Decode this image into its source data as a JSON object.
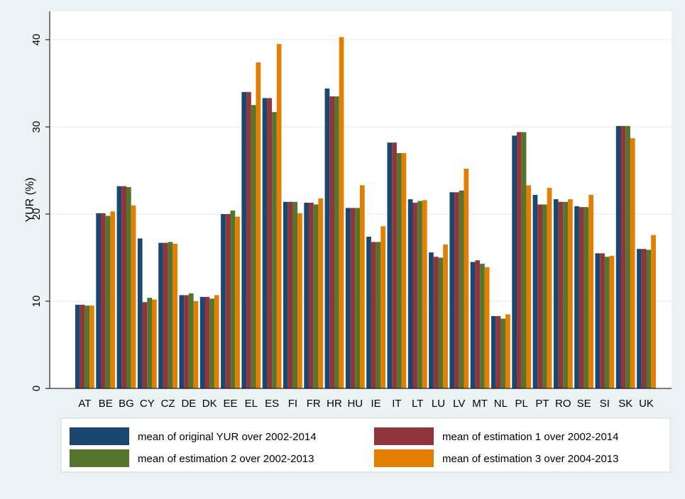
{
  "chart_data": {
    "type": "bar",
    "ylabel": "YUR (%)",
    "xlabel": "",
    "ylim": [
      0,
      42
    ],
    "yticks": [
      0,
      10,
      20,
      30,
      40
    ],
    "grid": true,
    "legend_position": "bottom",
    "categories": [
      "AT",
      "BE",
      "BG",
      "CY",
      "CZ",
      "DE",
      "DK",
      "EE",
      "EL",
      "ES",
      "FI",
      "FR",
      "HR",
      "HU",
      "IE",
      "IT",
      "LT",
      "LU",
      "LV",
      "MT",
      "NL",
      "PL",
      "PT",
      "RO",
      "SE",
      "SI",
      "SK",
      "UK"
    ],
    "series": [
      {
        "name": "mean of original YUR over 2002-2014",
        "color": "#1a476f",
        "values": [
          9.6,
          20.1,
          23.2,
          17.2,
          16.7,
          10.7,
          10.5,
          20.0,
          34.0,
          33.3,
          21.4,
          21.3,
          34.4,
          20.7,
          17.4,
          28.2,
          21.7,
          15.6,
          22.5,
          14.5,
          8.3,
          29.0,
          22.2,
          21.7,
          20.9,
          15.5,
          30.1,
          16.0
        ]
      },
      {
        "name": "mean of estimation 1 over 2002-2014",
        "color": "#90353b",
        "values": [
          9.6,
          20.1,
          23.2,
          9.9,
          16.7,
          10.7,
          10.5,
          20.0,
          34.0,
          33.3,
          21.4,
          21.3,
          33.5,
          20.7,
          16.8,
          28.2,
          21.3,
          15.1,
          22.5,
          14.7,
          8.3,
          29.4,
          21.1,
          21.4,
          20.8,
          15.5,
          30.1,
          16.0
        ]
      },
      {
        "name": "mean of estimation 2 over 2002-2013",
        "color": "#55752f",
        "values": [
          9.5,
          19.8,
          23.1,
          10.4,
          16.8,
          10.9,
          10.3,
          20.4,
          32.5,
          31.7,
          21.4,
          21.1,
          33.5,
          20.7,
          16.8,
          27.0,
          21.5,
          15.0,
          22.7,
          14.3,
          8.0,
          29.4,
          21.1,
          21.4,
          20.8,
          15.1,
          30.1,
          15.9
        ]
      },
      {
        "name": "mean of estimation 3 over 2004-2013",
        "color": "#e37e00",
        "values": [
          9.5,
          20.3,
          21.0,
          10.2,
          16.6,
          10.0,
          10.7,
          19.7,
          37.4,
          39.5,
          20.1,
          21.8,
          40.3,
          23.3,
          18.6,
          27.0,
          21.6,
          16.5,
          25.2,
          13.9,
          8.5,
          23.3,
          23.0,
          21.7,
          22.2,
          15.2,
          28.7,
          17.6
        ]
      }
    ]
  }
}
